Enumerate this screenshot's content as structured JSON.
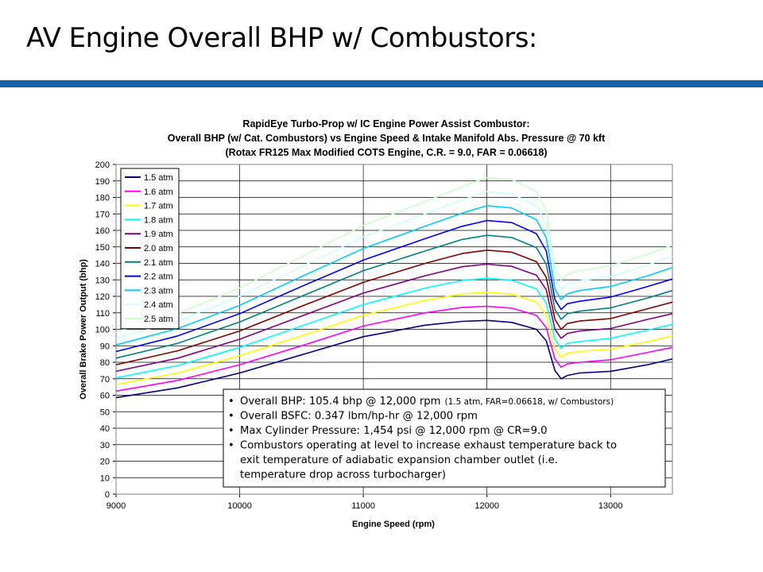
{
  "slide": {
    "title": "AV Engine Overall BHP w/ Combustors:"
  },
  "colors": {
    "title_rule": "#1360ae"
  },
  "chart_data": {
    "type": "line",
    "title": [
      "RapidEye Turbo-Prop w/ IC Engine Power Assist Combustor:",
      "Overall BHP (w/ Cat. Combustors) vs Engine Speed & Intake Manifold Abs. Pressure @ 70 kft",
      "(Rotax FR125 Max Modified COTS Engine, C.R. = 9.0, FAR = 0.06618)"
    ],
    "xlabel": "Engine Speed (rpm)",
    "ylabel": "Overall Brake Power Output (bhp)",
    "xlim": [
      9000,
      13500
    ],
    "ylim": [
      0,
      200
    ],
    "xticks": [
      9000,
      10000,
      11000,
      12000,
      13000
    ],
    "yticks": [
      0,
      10,
      20,
      30,
      40,
      50,
      60,
      70,
      80,
      90,
      100,
      110,
      120,
      130,
      140,
      150,
      160,
      170,
      180,
      190,
      200
    ],
    "grid": true,
    "legend_position": "top-left",
    "x": [
      9000,
      9500,
      10000,
      10500,
      11000,
      11500,
      11800,
      12000,
      12200,
      12400,
      12480,
      12550,
      12600,
      12650,
      12750,
      13000,
      13300,
      13500
    ],
    "series": [
      {
        "name": "1.5 atm",
        "color": "#000080",
        "values": [
          58.5,
          64.5,
          73.5,
          84.5,
          95.5,
          102.5,
          104.8,
          105.4,
          104.2,
          100,
          93,
          75,
          70,
          72,
          73.5,
          74.5,
          78.5,
          82
        ]
      },
      {
        "name": "1.6 atm",
        "color": "#ff00ff",
        "values": [
          62.5,
          69,
          78.5,
          90,
          102,
          110,
          113.3,
          114.0,
          112.8,
          108.5,
          101,
          82,
          77,
          79,
          80,
          81.5,
          86,
          89
        ]
      },
      {
        "name": "1.7 atm",
        "color": "#ffff00",
        "values": [
          66.5,
          73.5,
          84,
          96,
          108.5,
          117.5,
          121.5,
          122.5,
          121.3,
          116.5,
          108.5,
          88,
          83,
          85.5,
          86.5,
          88,
          92.5,
          96
        ]
      },
      {
        "name": "1.8 atm",
        "color": "#00ffff",
        "values": [
          70.5,
          78,
          89,
          102,
          115,
          125,
          129.7,
          131.0,
          129.8,
          124.5,
          116,
          94,
          88.5,
          91.5,
          92.5,
          94.5,
          99.5,
          103
        ]
      },
      {
        "name": "1.9 atm",
        "color": "#800080",
        "values": [
          74.5,
          82.5,
          94,
          108,
          122,
          132.5,
          138,
          139.5,
          138.2,
          132.8,
          124,
          100,
          94.5,
          97.5,
          99,
          100.5,
          106,
          109.5
        ]
      },
      {
        "name": "2.0 atm",
        "color": "#800000",
        "values": [
          78.5,
          87,
          99,
          114,
          128.5,
          140,
          146,
          148.0,
          146.8,
          141,
          131.5,
          106,
          100,
          103.5,
          105,
          106.5,
          112.5,
          116.5
        ]
      },
      {
        "name": "2.1 atm",
        "color": "#008080",
        "values": [
          82.5,
          91.5,
          104.5,
          120,
          135.5,
          147.5,
          154.5,
          157.0,
          155.7,
          149.5,
          139.5,
          112,
          106,
          109.5,
          111,
          113,
          119,
          123.5
        ]
      },
      {
        "name": "2.2 atm",
        "color": "#0000ff",
        "values": [
          86.5,
          96,
          109.5,
          126,
          142,
          155,
          162.5,
          166.0,
          164.7,
          158,
          147.5,
          118,
          112,
          115.5,
          117,
          119.5,
          126,
          130.5
        ]
      },
      {
        "name": "2.3 atm",
        "color": "#00ccff",
        "values": [
          90.5,
          100.5,
          114.5,
          132,
          149,
          162.5,
          170.5,
          175.0,
          173.6,
          166.5,
          155.5,
          124.5,
          118,
          121.5,
          123.5,
          126,
          132.5,
          137.5
        ]
      },
      {
        "name": "2.4 atm",
        "color": "#ccffff",
        "values": [
          94.5,
          105,
          120,
          138,
          156,
          170,
          178.5,
          183.5,
          182.2,
          175,
          163.5,
          131,
          124,
          127.5,
          129.5,
          132,
          139,
          144.5
        ]
      },
      {
        "name": "2.5 atm",
        "color": "#ccffcc",
        "values": [
          98.5,
          109.5,
          125,
          144,
          163,
          177.5,
          186.5,
          192.0,
          190.8,
          183.5,
          171.5,
          137,
          130,
          133.5,
          135.5,
          138.5,
          145.5,
          151
        ]
      }
    ],
    "annotation": [
      {
        "main": "Overall BHP: 105.4 bhp @ 12,000 rpm ",
        "small": "(1.5 atm, FAR=0.06618, w/ Combustors)"
      },
      {
        "main": "Overall BSFC: 0.347 lbm/hp-hr @ 12,000 rpm",
        "small": ""
      },
      {
        "main": "Max Cylinder Pressure: 1,454 psi @ 12,000 rpm @ CR=9.0",
        "small": ""
      },
      {
        "main": "Combustors operating at level to increase exhaust temperature back to exit temperature of adiabatic expansion chamber outlet (i.e. temperature drop across turbocharger)",
        "small": ""
      }
    ]
  }
}
